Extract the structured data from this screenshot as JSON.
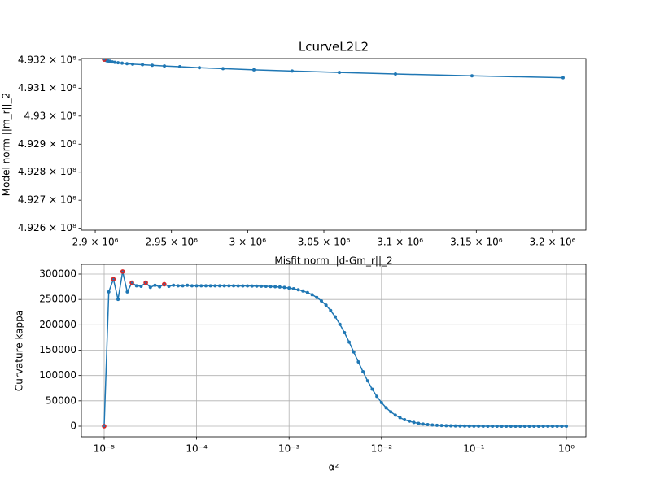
{
  "chart_data": [
    {
      "type": "line",
      "title": "LcurveL2L2",
      "xlabel": "Misfit norm ||d-Gm_r||_2",
      "ylabel": "Model norm ||m_r||_2",
      "x": [
        2905872,
        2906406,
        2906939,
        2907473,
        2908541,
        2909608,
        2911210,
        2912811,
        2914946,
        2917615,
        2920818,
        2924555,
        2930960,
        2937366,
        2945373,
        2955515,
        2968326,
        2983807,
        3004091,
        3029180,
        3060140,
        3096972,
        3147149,
        3206935
      ],
      "values": [
        493202057,
        493200686,
        493199314,
        493197943,
        493196914,
        493195885,
        493193485,
        493192114,
        493190743,
        493189029,
        493187314,
        493185600,
        493183543,
        493181486,
        493179086,
        493176343,
        493172914,
        493169486,
        493165371,
        493160914,
        493155771,
        493150286,
        493143771,
        493136914
      ],
      "color": "#1f77b4",
      "highlight": {
        "color": "#d62728",
        "x": [
          2905872
        ],
        "y": [
          493202057
        ]
      },
      "xlim": [
        2890900,
        3221900
      ],
      "ylim": [
        492593142,
        493205486
      ],
      "xticks": [
        {
          "value": 2900000,
          "label": "2.9 × 10⁶"
        },
        {
          "value": 2950000,
          "label": "2.95 × 10⁶"
        },
        {
          "value": 3000000,
          "label": "3 × 10⁶"
        },
        {
          "value": 3050000,
          "label": "3.05 × 10⁶"
        },
        {
          "value": 3100000,
          "label": "3.1 × 10⁶"
        },
        {
          "value": 3150000,
          "label": "3.15 × 10⁶"
        },
        {
          "value": 3200000,
          "label": "3.2 × 10⁶"
        }
      ],
      "yticks": [
        {
          "value": 492600000,
          "label": "4.926 × 10⁸"
        },
        {
          "value": 492700000,
          "label": "4.927 × 10⁸"
        },
        {
          "value": 492800000,
          "label": "4.928 × 10⁸"
        },
        {
          "value": 492900000,
          "label": "4.929 × 10⁸"
        },
        {
          "value": 493000000,
          "label": "4.93 × 10⁸"
        },
        {
          "value": 493100000,
          "label": "4.931 × 10⁸"
        },
        {
          "value": 493200000,
          "label": "4.932 × 10⁸"
        }
      ],
      "grid": false,
      "xscale": "linear"
    },
    {
      "type": "line",
      "xlabel": "α²",
      "ylabel": "Curvature kappa",
      "x": [
        1e-05,
        1.122e-05,
        1.259e-05,
        1.413e-05,
        1.585e-05,
        1.778e-05,
        1.995e-05,
        2.239e-05,
        2.512e-05,
        2.818e-05,
        3.162e-05,
        3.548e-05,
        3.981e-05,
        4.467e-05,
        5.012e-05,
        5.623e-05,
        6.31e-05,
        7.079e-05,
        7.943e-05,
        8.913e-05,
        0.0001,
        0.0001122,
        0.0001259,
        0.0001413,
        0.0001585,
        0.0001778,
        0.0001995,
        0.0002239,
        0.0002512,
        0.0002818,
        0.0003162,
        0.0003548,
        0.0003981,
        0.0004467,
        0.0005012,
        0.0005623,
        0.000631,
        0.0007079,
        0.0007943,
        0.0008913,
        0.001,
        0.001122,
        0.001259,
        0.001413,
        0.001585,
        0.001778,
        0.001995,
        0.002239,
        0.002512,
        0.002818,
        0.003162,
        0.003548,
        0.003981,
        0.004467,
        0.005012,
        0.005623,
        0.00631,
        0.007079,
        0.007943,
        0.008913,
        0.01,
        0.01122,
        0.01259,
        0.01413,
        0.01585,
        0.01778,
        0.01995,
        0.02239,
        0.02512,
        0.02818,
        0.03162,
        0.03548,
        0.03981,
        0.04467,
        0.05012,
        0.05623,
        0.0631,
        0.07079,
        0.07943,
        0.08913,
        0.1,
        0.1122,
        0.1259,
        0.1413,
        0.1585,
        0.1778,
        0.1995,
        0.2239,
        0.2512,
        0.2818,
        0.3162,
        0.3548,
        0.3981,
        0.4467,
        0.5012,
        0.5623,
        0.631,
        0.7079,
        0.7943,
        0.8913,
        1
      ],
      "values": [
        0,
        265000,
        290000,
        250000,
        305000,
        265000,
        283000,
        277000,
        276000,
        283000,
        274000,
        278000,
        275000,
        280000,
        276000,
        278000,
        277000,
        277000,
        278000,
        277000,
        277000,
        277000,
        277000,
        277000,
        277000,
        277000,
        277000,
        276900,
        276850,
        276800,
        276740,
        276660,
        276540,
        276390,
        276190,
        275920,
        275570,
        275100,
        274480,
        273630,
        272530,
        271120,
        269190,
        266760,
        263480,
        259390,
        253970,
        247100,
        238800,
        228200,
        215700,
        200900,
        184400,
        165900,
        146300,
        126700,
        107400,
        89400,
        72900,
        58800,
        46600,
        36400,
        28400,
        21800,
        16800,
        12800,
        9750,
        7370,
        5550,
        4220,
        3170,
        2380,
        1790,
        1340,
        1000,
        750,
        560,
        420,
        315,
        235,
        176,
        130,
        98,
        73,
        55,
        41,
        31,
        23,
        17,
        13,
        10,
        7,
        5,
        4,
        3,
        2,
        2,
        1,
        1,
        1,
        1
      ],
      "color": "#1f77b4",
      "highlight": {
        "color": "#d62728",
        "x": [
          1e-05,
          1.259e-05,
          1.585e-05,
          1.995e-05,
          2.818e-05,
          4.467e-05
        ],
        "y": [
          0,
          290000,
          305000,
          283000,
          283000,
          280000
        ]
      },
      "xlim": [
        5.67e-06,
        1.626
      ],
      "ylim": [
        -20850,
        319250
      ],
      "xticks": [
        {
          "value": 1e-05,
          "label": "10⁻⁵"
        },
        {
          "value": 0.0001,
          "label": "10⁻⁴"
        },
        {
          "value": 0.001,
          "label": "10⁻³"
        },
        {
          "value": 0.01,
          "label": "10⁻²"
        },
        {
          "value": 0.1,
          "label": "10⁻¹"
        },
        {
          "value": 1,
          "label": "10⁰"
        }
      ],
      "yticks": [
        0,
        50000,
        100000,
        150000,
        200000,
        250000,
        300000
      ],
      "grid": true,
      "xscale": "log"
    }
  ]
}
